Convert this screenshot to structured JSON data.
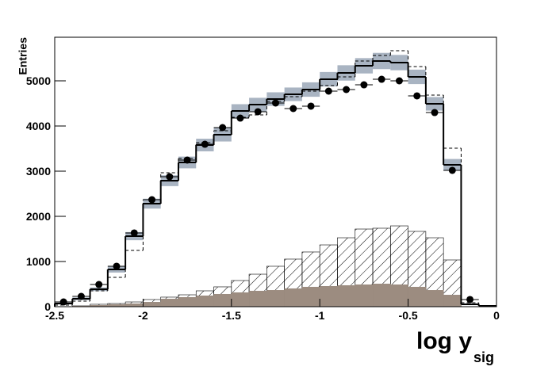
{
  "chart_data": {
    "type": "histogram",
    "ylabel": "Entries",
    "xlabel": "log y",
    "xlabel_subscript": "sig",
    "bins": [
      -2.5,
      -2.4,
      -2.3,
      -2.2,
      -2.1,
      -2.0,
      -1.9,
      -1.8,
      -1.7,
      -1.6,
      -1.5,
      -1.4,
      -1.3,
      -1.2,
      -1.1,
      -1.0,
      -0.9,
      -0.8,
      -0.7,
      -0.6,
      -0.5,
      -0.4,
      -0.3,
      -0.2,
      -0.1,
      0.0
    ],
    "xlim": [
      -2.5,
      0
    ],
    "xticks": [
      -2.5,
      -2,
      -1.5,
      -1,
      -0.5,
      0
    ],
    "ylim": [
      0,
      5965
    ],
    "yticks": [
      0,
      1000,
      2000,
      3000,
      4000,
      5000
    ],
    "series": [
      {
        "style": "hatch",
        "color": "#000000",
        "values": [
          0,
          18,
          53,
          70,
          105,
          158,
          211,
          263,
          351,
          439,
          579,
          719,
          895,
          1053,
          1211,
          1368,
          1526,
          1719,
          1737,
          1789,
          1667,
          1526,
          1035,
          0,
          0
        ]
      },
      {
        "style": "fill",
        "color": "#9c8c80",
        "values": [
          0,
          18,
          35,
          53,
          70,
          105,
          175,
          211,
          246,
          281,
          316,
          351,
          368,
          404,
          439,
          456,
          474,
          491,
          509,
          491,
          439,
          368,
          263,
          0,
          0
        ]
      },
      {
        "style": "step",
        "color": "#000000",
        "band_color": "#a9b4c2",
        "values": [
          70,
          175,
          386,
          825,
          1561,
          2281,
          2789,
          3193,
          3579,
          3807,
          4333,
          4474,
          4596,
          4702,
          4807,
          5035,
          5175,
          5333,
          5439,
          5404,
          5088,
          4491,
          3140,
          53,
          18
        ],
        "errors": [
          20,
          30,
          40,
          70,
          90,
          110,
          120,
          130,
          140,
          150,
          150,
          150,
          150,
          150,
          160,
          160,
          170,
          170,
          180,
          170,
          160,
          150,
          130,
          20,
          10
        ]
      },
      {
        "style": "dashed",
        "color": "#000000",
        "values": [
          35,
          123,
          351,
          649,
          1246,
          2368,
          2965,
          3281,
          3632,
          3895,
          4193,
          4246,
          4544,
          4649,
          4772,
          4895,
          5088,
          5439,
          5561,
          5667,
          5316,
          4684,
          3509,
          88,
          18
        ]
      },
      {
        "style": "points",
        "color": "#000000",
        "values": [
          105,
          228,
          491,
          895,
          1632,
          2368,
          2877,
          3246,
          3596,
          3965,
          4175,
          4316,
          4509,
          4386,
          4439,
          4772,
          4807,
          4912,
          5035,
          5000,
          4667,
          4298,
          3018,
          158,
          null
        ]
      }
    ]
  }
}
